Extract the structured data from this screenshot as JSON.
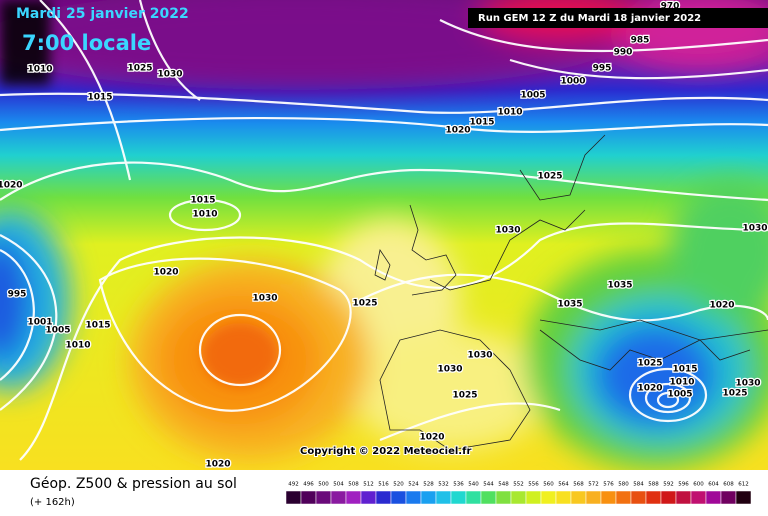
{
  "header": {
    "date": "Mardi 25 janvier 2022",
    "time": "7:00 locale"
  },
  "run_info": "Run GEM 12 Z du Mardi 18 janvier 2022",
  "isobar_labels": [
    "970",
    "985",
    "990",
    "995",
    "1000",
    "1005",
    "1010",
    "1015",
    "1020",
    "1010",
    "1025",
    "1030",
    "1015",
    "1020",
    "1015",
    "1010",
    "1025",
    "1030",
    "1030",
    "1020",
    "1030",
    "1025",
    "1035",
    "1035",
    "1020",
    "995",
    "1001",
    "1005",
    "1015",
    "1010",
    "1030",
    "1030",
    "1025",
    "1015",
    "1010",
    "1020",
    "1005",
    "1030",
    "1025",
    "1025",
    "1020",
    "1020"
  ],
  "copyright": "Copyright © 2022 Meteociel.fr",
  "footer": {
    "title": "Géop. Z500 & pression au sol",
    "lead_time": "(+ 162h)"
  },
  "legend": {
    "scale": [
      492,
      496,
      500,
      504,
      508,
      512,
      516,
      520,
      524,
      528,
      532,
      536,
      540,
      544,
      548,
      552,
      556,
      560,
      564,
      568,
      572,
      576,
      580,
      584,
      588,
      592,
      596,
      600,
      604,
      608,
      612
    ],
    "colors": [
      "#2a0030",
      "#50005a",
      "#6a0a7a",
      "#8a1aa0",
      "#a020c0",
      "#6020d0",
      "#2a2ad0",
      "#1a50e0",
      "#1a7aee",
      "#1aa0f0",
      "#20c0e8",
      "#20d8d0",
      "#30e0a0",
      "#50e060",
      "#80e040",
      "#a8e830",
      "#d0f020",
      "#f0f020",
      "#f8e020",
      "#f8c820",
      "#f8b020",
      "#f89010",
      "#f27010",
      "#e85010",
      "#e03010",
      "#d01818",
      "#c01040",
      "#c01070",
      "#a00898",
      "#700060",
      "#200010"
    ]
  }
}
